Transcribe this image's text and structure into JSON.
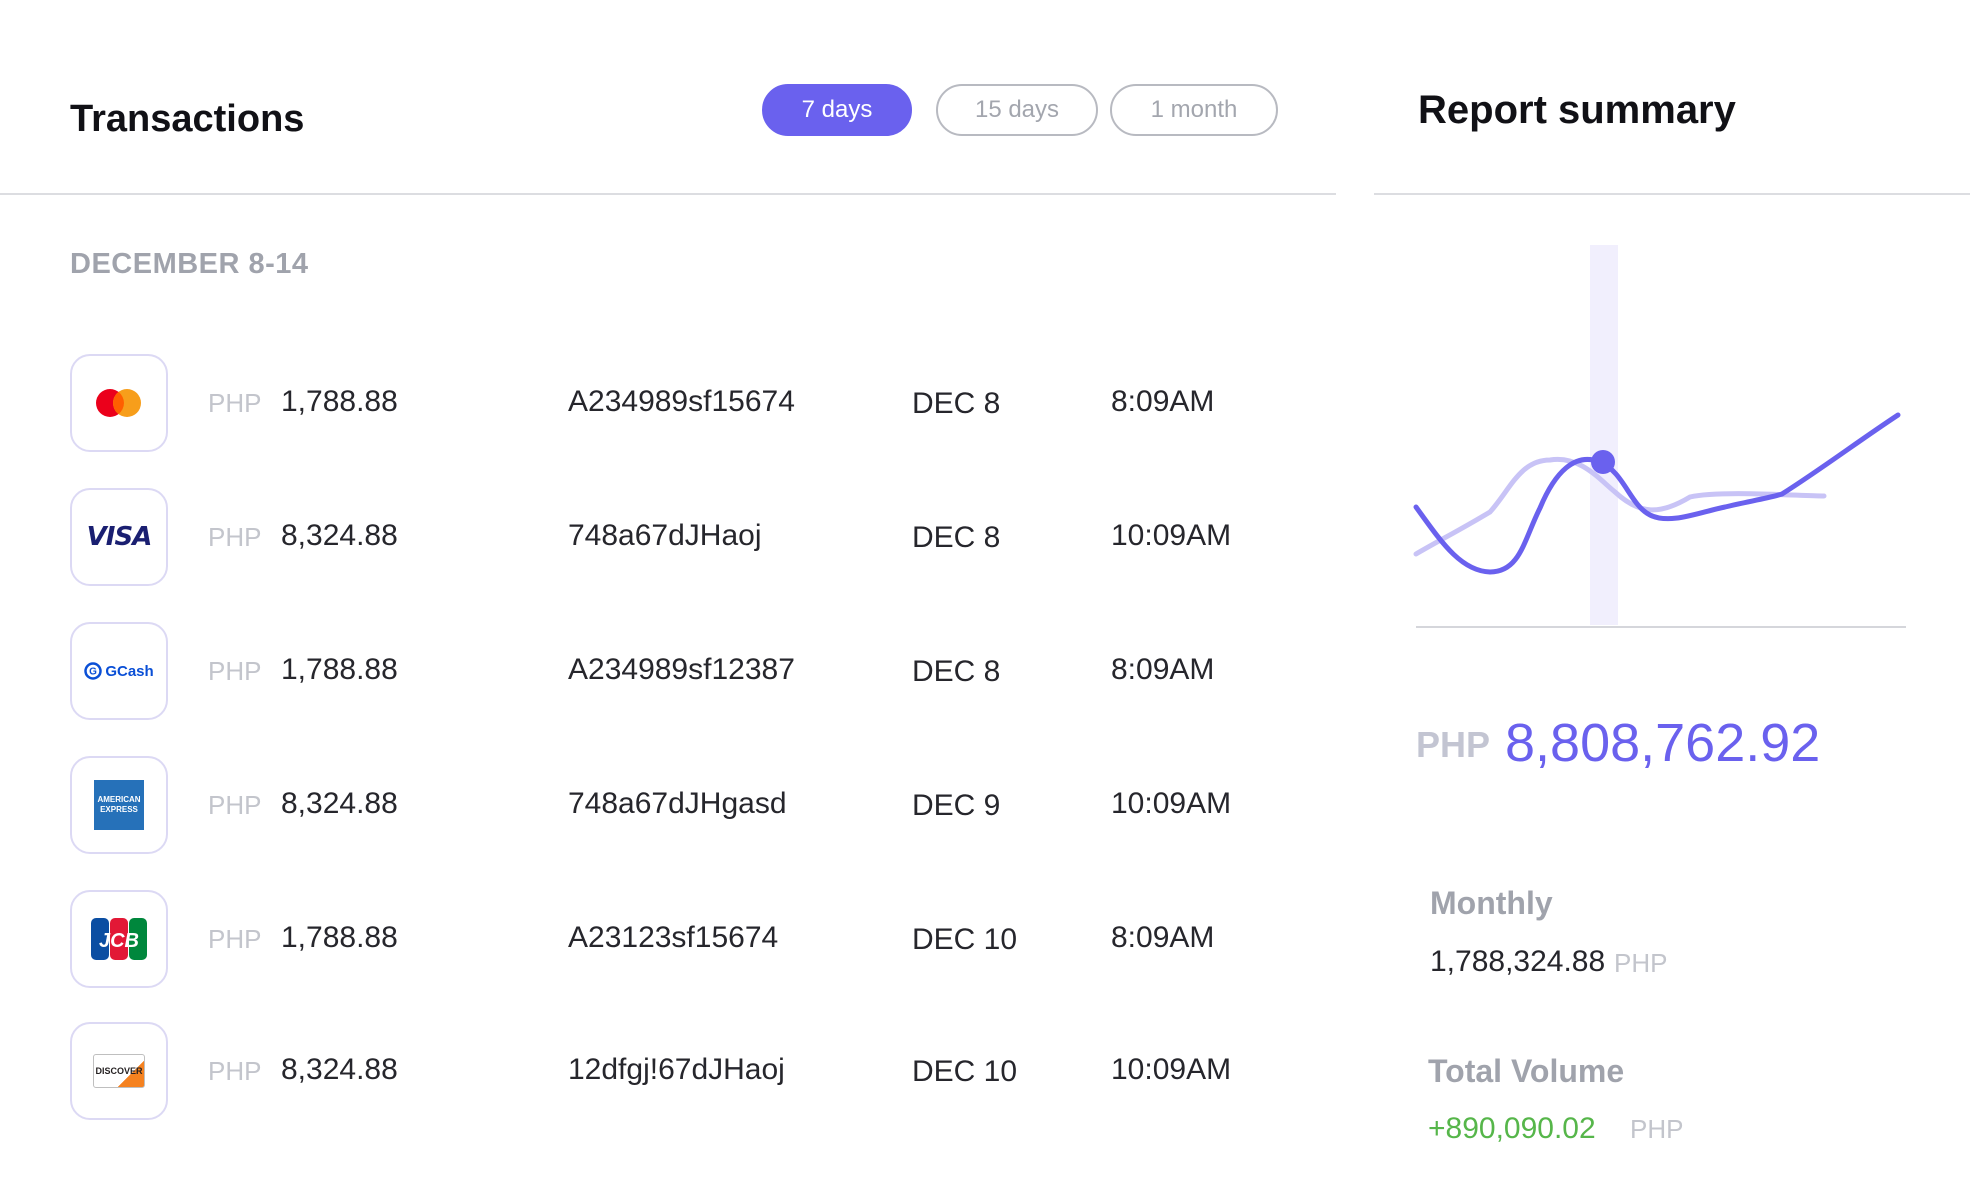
{
  "transactions": {
    "title": "Transactions",
    "filters": [
      {
        "label": "7 days",
        "active": true
      },
      {
        "label": "15 days",
        "active": false
      },
      {
        "label": "1 month",
        "active": false
      }
    ],
    "period": "DECEMBER 8-14",
    "rows": [
      {
        "method_icon": "mastercard-icon",
        "currency": "PHP",
        "amount": "1,788.88",
        "reference": "A234989sf15674",
        "date": "DEC 8",
        "time": "8:09AM"
      },
      {
        "method_icon": "visa-icon",
        "currency": "PHP",
        "amount": "8,324.88",
        "reference": "748a67dJHaoj",
        "date": "DEC 8",
        "time": "10:09AM"
      },
      {
        "method_icon": "gcash-icon",
        "currency": "PHP",
        "amount": "1,788.88",
        "reference": "A234989sf12387",
        "date": "DEC 8",
        "time": "8:09AM"
      },
      {
        "method_icon": "american-express-icon",
        "currency": "PHP",
        "amount": "8,324.88",
        "reference": "748a67dJHgasd",
        "date": "DEC 9",
        "time": "10:09AM"
      },
      {
        "method_icon": "jcb-icon",
        "currency": "PHP",
        "amount": "1,788.88",
        "reference": "A23123sf15674",
        "date": "DEC 10",
        "time": "8:09AM"
      },
      {
        "method_icon": "discover-icon",
        "currency": "PHP",
        "amount": "8,324.88",
        "reference": "12dfgj!67dJHaoj",
        "date": "DEC 10",
        "time": "10:09AM"
      }
    ],
    "logos": {
      "visa": "VISA",
      "gcash": "GCash",
      "amex_line1": "AMERICAN",
      "amex_line2": "EXPRESS",
      "jcb": "JCB",
      "discover": "DISCOVER"
    }
  },
  "report": {
    "title": "Report summary",
    "total_currency": "PHP",
    "total_value": "8,808,762.92",
    "monthly_label": "Monthly",
    "monthly_value": "1,788,324.88",
    "monthly_currency": "PHP",
    "volume_label": "Total Volume",
    "volume_value": "+890,090.02",
    "volume_currency": "PHP"
  },
  "colors": {
    "accent": "#6a61ee",
    "accent_light": "#c4c0f7",
    "positive": "#56b64a",
    "muted": "#a0a3ac"
  }
}
